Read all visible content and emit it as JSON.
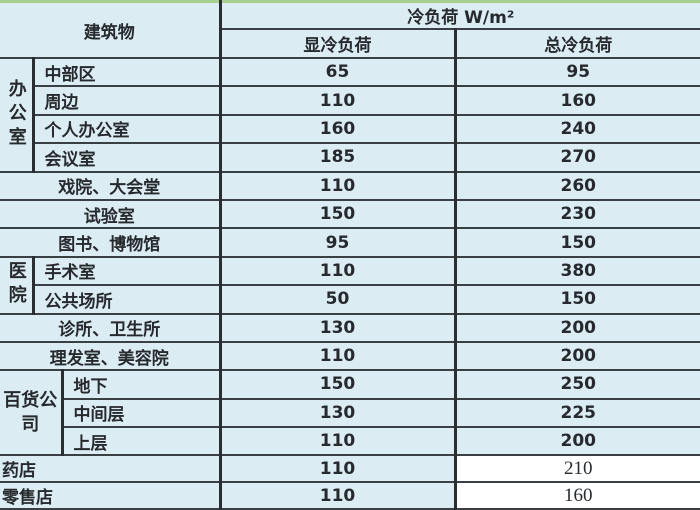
{
  "header": {
    "building": "建筑物",
    "cooling_load": "冷负荷 W/m²",
    "sensible": "显冷负荷",
    "total": "总冷负荷"
  },
  "office": {
    "group": "办公室",
    "rows": [
      {
        "name": "中部区",
        "sensible": "65",
        "total": "95"
      },
      {
        "name": "周边",
        "sensible": "110",
        "total": "160"
      },
      {
        "name": "个人办公室",
        "sensible": "160",
        "total": "240"
      },
      {
        "name": "会议室",
        "sensible": "185",
        "total": "270"
      }
    ]
  },
  "theater": {
    "name": "戏院、大会堂",
    "sensible": "110",
    "total": "260"
  },
  "lab": {
    "name": "试验室",
    "sensible": "150",
    "total": "230"
  },
  "library": {
    "name": "图书、博物馆",
    "sensible": "95",
    "total": "150"
  },
  "hospital": {
    "group": "医院",
    "rows": [
      {
        "name": "手术室",
        "sensible": "110",
        "total": "380"
      },
      {
        "name": "公共场所",
        "sensible": "50",
        "total": "150"
      }
    ]
  },
  "clinic": {
    "name": "诊所、卫生所",
    "sensible": "130",
    "total": "200"
  },
  "salon": {
    "name": "理发室、美容院",
    "sensible": "110",
    "total": "200"
  },
  "store": {
    "group": "百货公司",
    "rows": [
      {
        "name": "地下",
        "sensible": "150",
        "total": "250"
      },
      {
        "name": "中间层",
        "sensible": "130",
        "total": "225"
      },
      {
        "name": "上层",
        "sensible": "110",
        "total": "200"
      }
    ]
  },
  "pharmacy": {
    "name": "药店",
    "sensible": "110",
    "total": "210"
  },
  "retail": {
    "name": "零售店",
    "sensible": "110",
    "total": "160"
  }
}
